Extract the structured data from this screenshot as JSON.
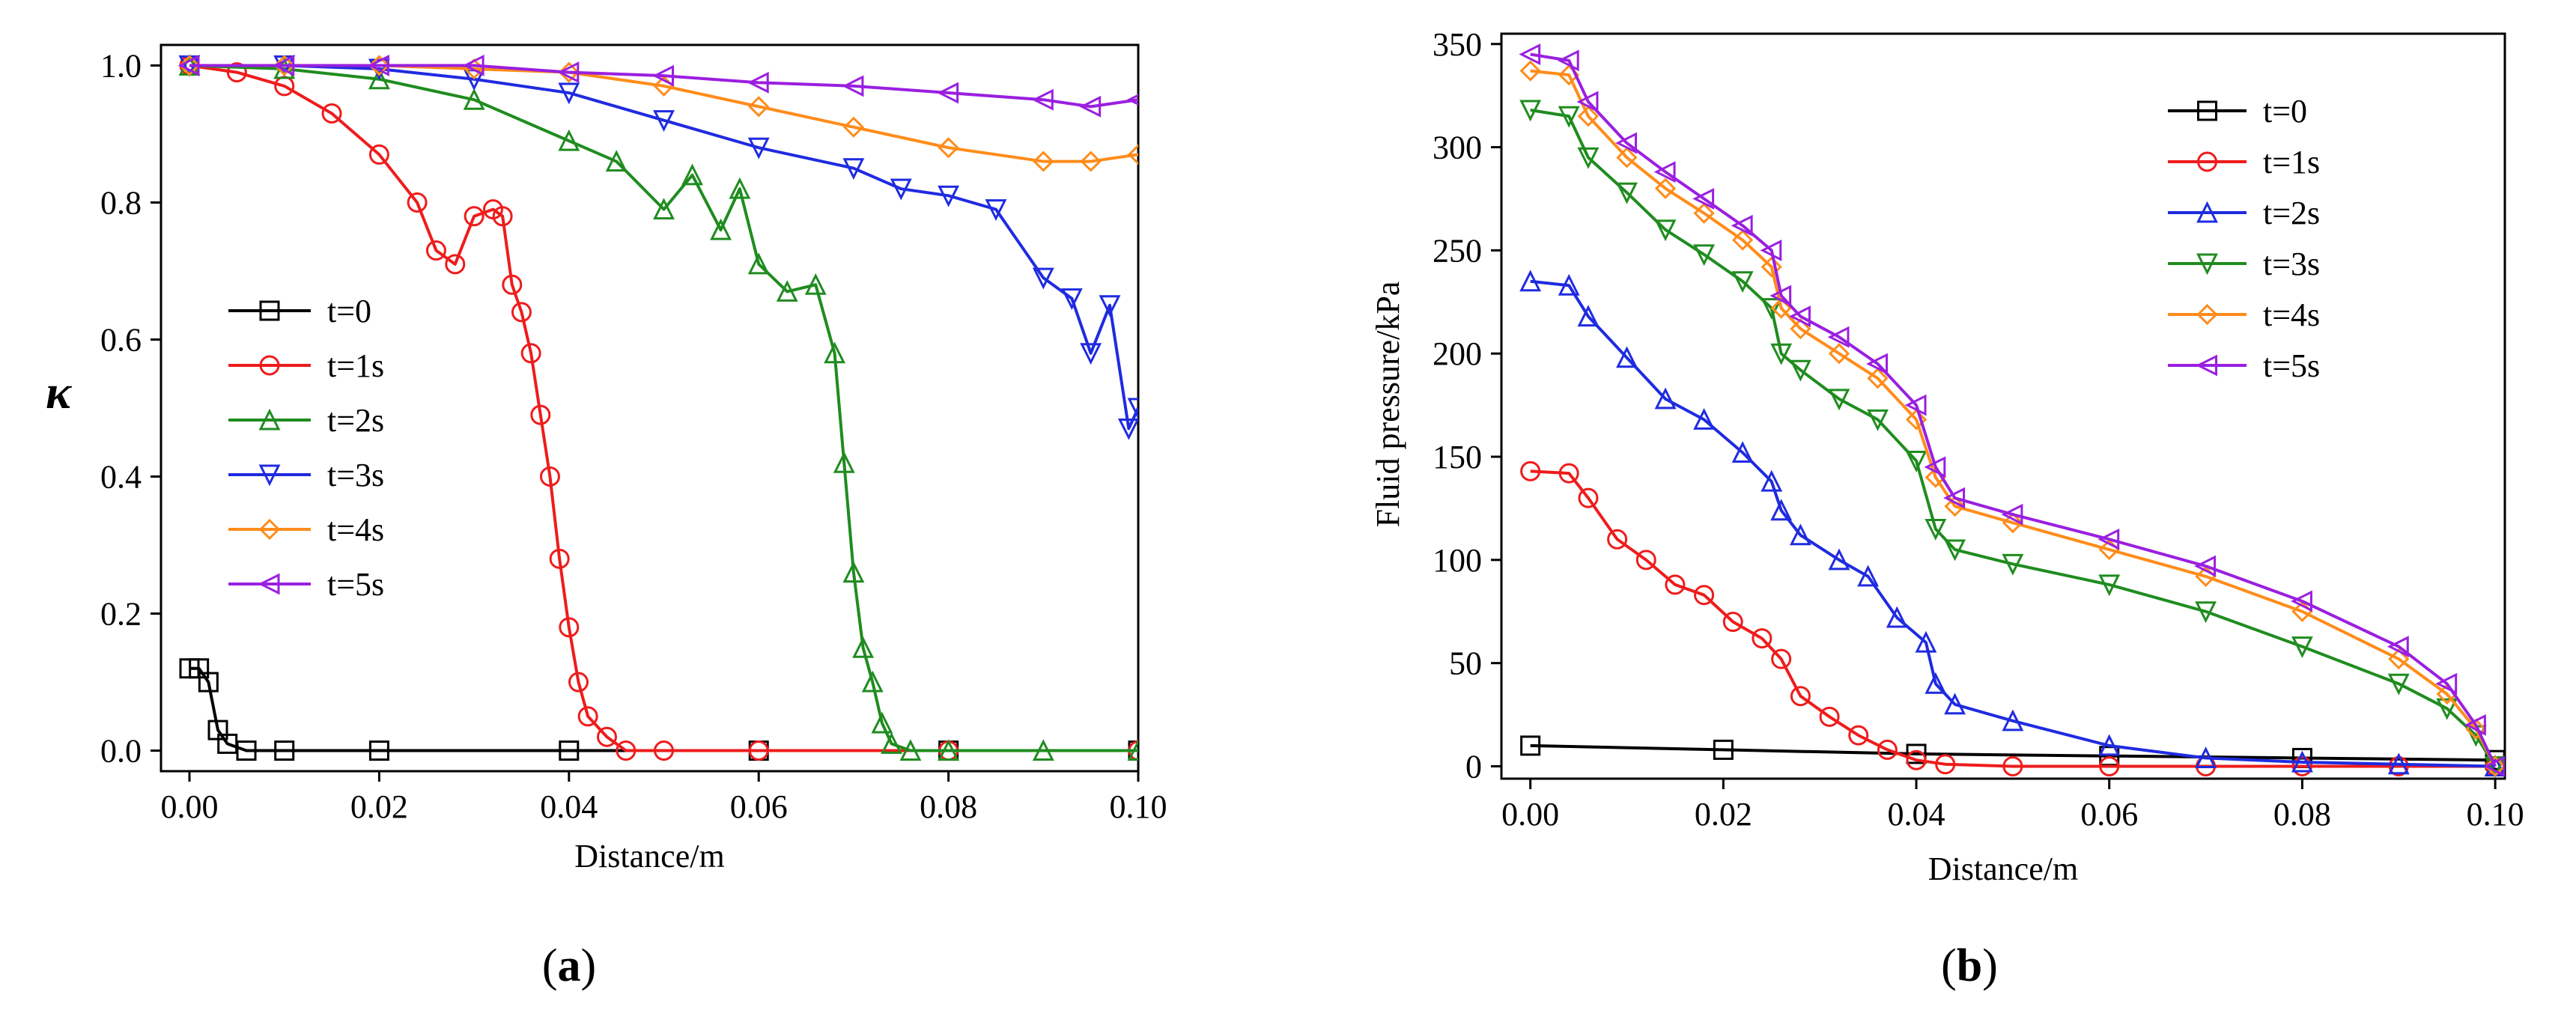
{
  "chart_data": [
    {
      "panel": "a",
      "type": "line",
      "caption_prefix": "(",
      "caption_letter": "a",
      "caption_suffix": ")",
      "xlabel": "Distance/m",
      "ylabel": "κ",
      "xlim": [
        -0.003,
        0.1
      ],
      "ylim": [
        -0.03,
        1.03
      ],
      "x_ticks": [
        0.0,
        0.02,
        0.04,
        0.06,
        0.08,
        0.1
      ],
      "x_tick_labels": [
        "0.00",
        "0.02",
        "0.04",
        "0.06",
        "0.08",
        "0.10"
      ],
      "y_ticks": [
        0.0,
        0.2,
        0.4,
        0.6,
        0.8,
        1.0
      ],
      "y_tick_labels": [
        "0.0",
        "0.2",
        "0.4",
        "0.6",
        "0.8",
        "1.0"
      ],
      "legend_position": "center-left",
      "series": [
        {
          "name": "t=0",
          "color": "#000000",
          "marker": "square",
          "x": [
            0.0,
            0.001,
            0.002,
            0.003,
            0.004,
            0.006,
            0.01,
            0.02,
            0.04,
            0.06,
            0.08,
            0.1
          ],
          "y": [
            0.12,
            0.12,
            0.1,
            0.03,
            0.01,
            0.0,
            0.0,
            0.0,
            0.0,
            0.0,
            0.0,
            0.0
          ]
        },
        {
          "name": "t=1s",
          "color": "#ee1c1c",
          "marker": "circle",
          "x": [
            0.0,
            0.005,
            0.01,
            0.015,
            0.02,
            0.024,
            0.026,
            0.028,
            0.03,
            0.032,
            0.033,
            0.034,
            0.035,
            0.036,
            0.037,
            0.038,
            0.039,
            0.04,
            0.041,
            0.042,
            0.044,
            0.046,
            0.05,
            0.06,
            0.08,
            0.1
          ],
          "y": [
            1.0,
            0.99,
            0.97,
            0.93,
            0.87,
            0.8,
            0.73,
            0.71,
            0.78,
            0.79,
            0.78,
            0.68,
            0.64,
            0.58,
            0.49,
            0.4,
            0.28,
            0.18,
            0.1,
            0.05,
            0.02,
            0.0,
            0.0,
            0.0,
            0.0,
            0.0
          ]
        },
        {
          "name": "t=2s",
          "color": "#1f8c1f",
          "marker": "triangle-up",
          "x": [
            0.0,
            0.01,
            0.02,
            0.03,
            0.04,
            0.045,
            0.05,
            0.053,
            0.056,
            0.058,
            0.06,
            0.063,
            0.066,
            0.068,
            0.069,
            0.07,
            0.071,
            0.072,
            0.073,
            0.074,
            0.076,
            0.08,
            0.09,
            0.1
          ],
          "y": [
            1.0,
            0.995,
            0.98,
            0.95,
            0.89,
            0.86,
            0.79,
            0.84,
            0.76,
            0.82,
            0.71,
            0.67,
            0.68,
            0.58,
            0.42,
            0.26,
            0.15,
            0.1,
            0.04,
            0.01,
            0.0,
            0.0,
            0.0,
            0.0
          ]
        },
        {
          "name": "t=3s",
          "color": "#1f2be0",
          "marker": "triangle-down",
          "x": [
            0.0,
            0.01,
            0.02,
            0.03,
            0.04,
            0.05,
            0.06,
            0.07,
            0.075,
            0.08,
            0.085,
            0.09,
            0.093,
            0.095,
            0.097,
            0.099,
            0.1
          ],
          "y": [
            1.0,
            1.0,
            0.995,
            0.98,
            0.96,
            0.92,
            0.88,
            0.85,
            0.82,
            0.81,
            0.79,
            0.69,
            0.66,
            0.58,
            0.65,
            0.47,
            0.5
          ]
        },
        {
          "name": "t=4s",
          "color": "#ff8c1a",
          "marker": "diamond",
          "x": [
            0.0,
            0.01,
            0.02,
            0.03,
            0.04,
            0.05,
            0.06,
            0.07,
            0.08,
            0.09,
            0.095,
            0.1
          ],
          "y": [
            1.0,
            1.0,
            1.0,
            0.995,
            0.99,
            0.97,
            0.94,
            0.91,
            0.88,
            0.86,
            0.86,
            0.87
          ]
        },
        {
          "name": "t=5s",
          "color": "#9a1fe0",
          "marker": "triangle-left",
          "x": [
            0.0,
            0.01,
            0.02,
            0.03,
            0.04,
            0.05,
            0.06,
            0.07,
            0.08,
            0.09,
            0.095,
            0.1
          ],
          "y": [
            1.0,
            1.0,
            1.0,
            1.0,
            0.99,
            0.985,
            0.975,
            0.97,
            0.96,
            0.95,
            0.94,
            0.95
          ]
        }
      ]
    },
    {
      "panel": "b",
      "type": "line",
      "caption_prefix": "(",
      "caption_letter": "b",
      "caption_suffix": ")",
      "xlabel": "Distance/m",
      "ylabel": "Fluid pressure/kPa",
      "xlim": [
        -0.003,
        0.101
      ],
      "ylim": [
        -6,
        355
      ],
      "x_ticks": [
        0.0,
        0.02,
        0.04,
        0.06,
        0.08,
        0.1
      ],
      "x_tick_labels": [
        "0.00",
        "0.02",
        "0.04",
        "0.06",
        "0.08",
        "0.10"
      ],
      "y_ticks": [
        0,
        50,
        100,
        150,
        200,
        250,
        300,
        350
      ],
      "y_tick_labels": [
        "0",
        "50",
        "100",
        "150",
        "200",
        "250",
        "300",
        "350"
      ],
      "legend_position": "top-right",
      "series": [
        {
          "name": "t=0",
          "color": "#000000",
          "marker": "square",
          "x": [
            0.0,
            0.02,
            0.04,
            0.06,
            0.08,
            0.1
          ],
          "y": [
            10,
            8,
            6,
            5,
            4,
            3
          ]
        },
        {
          "name": "t=1s",
          "color": "#ee1c1c",
          "marker": "circle",
          "x": [
            0.0,
            0.004,
            0.006,
            0.009,
            0.012,
            0.015,
            0.018,
            0.021,
            0.024,
            0.026,
            0.028,
            0.031,
            0.034,
            0.037,
            0.04,
            0.043,
            0.05,
            0.06,
            0.07,
            0.08,
            0.09,
            0.1
          ],
          "y": [
            143,
            142,
            130,
            110,
            100,
            88,
            83,
            70,
            62,
            52,
            34,
            24,
            15,
            8,
            3,
            1,
            0,
            0,
            0,
            0,
            0,
            0
          ]
        },
        {
          "name": "t=2s",
          "color": "#1f2be0",
          "marker": "triangle-up",
          "x": [
            0.0,
            0.004,
            0.006,
            0.01,
            0.014,
            0.018,
            0.022,
            0.025,
            0.026,
            0.028,
            0.032,
            0.035,
            0.038,
            0.041,
            0.042,
            0.044,
            0.05,
            0.06,
            0.07,
            0.08,
            0.09,
            0.1
          ],
          "y": [
            235,
            233,
            218,
            198,
            178,
            168,
            152,
            138,
            124,
            112,
            100,
            92,
            72,
            60,
            40,
            30,
            22,
            10,
            4,
            2,
            1,
            0
          ]
        },
        {
          "name": "t=3s",
          "color": "#1f8c1f",
          "marker": "triangle-down",
          "x": [
            0.0,
            0.004,
            0.006,
            0.01,
            0.014,
            0.018,
            0.022,
            0.025,
            0.026,
            0.028,
            0.032,
            0.036,
            0.04,
            0.042,
            0.044,
            0.05,
            0.06,
            0.07,
            0.08,
            0.09,
            0.095,
            0.098,
            0.1
          ],
          "y": [
            318,
            315,
            295,
            278,
            260,
            248,
            235,
            222,
            200,
            192,
            178,
            168,
            148,
            115,
            105,
            98,
            88,
            75,
            58,
            40,
            28,
            15,
            0
          ]
        },
        {
          "name": "t=4s",
          "color": "#ff8c1a",
          "marker": "diamond",
          "x": [
            0.0,
            0.004,
            0.006,
            0.01,
            0.014,
            0.018,
            0.022,
            0.025,
            0.026,
            0.028,
            0.032,
            0.036,
            0.04,
            0.042,
            0.044,
            0.05,
            0.06,
            0.07,
            0.08,
            0.09,
            0.095,
            0.098,
            0.1
          ],
          "y": [
            337,
            335,
            315,
            295,
            280,
            268,
            255,
            242,
            222,
            212,
            200,
            188,
            168,
            140,
            126,
            118,
            105,
            92,
            75,
            52,
            35,
            18,
            0
          ]
        },
        {
          "name": "t=5s",
          "color": "#9a1fe0",
          "marker": "triangle-left",
          "x": [
            0.0,
            0.004,
            0.006,
            0.01,
            0.014,
            0.018,
            0.022,
            0.025,
            0.026,
            0.028,
            0.032,
            0.036,
            0.04,
            0.042,
            0.044,
            0.05,
            0.06,
            0.07,
            0.08,
            0.09,
            0.095,
            0.098,
            0.1
          ],
          "y": [
            345,
            342,
            322,
            302,
            288,
            275,
            262,
            250,
            228,
            218,
            208,
            195,
            175,
            145,
            130,
            122,
            110,
            97,
            80,
            58,
            40,
            20,
            0
          ]
        }
      ]
    }
  ]
}
